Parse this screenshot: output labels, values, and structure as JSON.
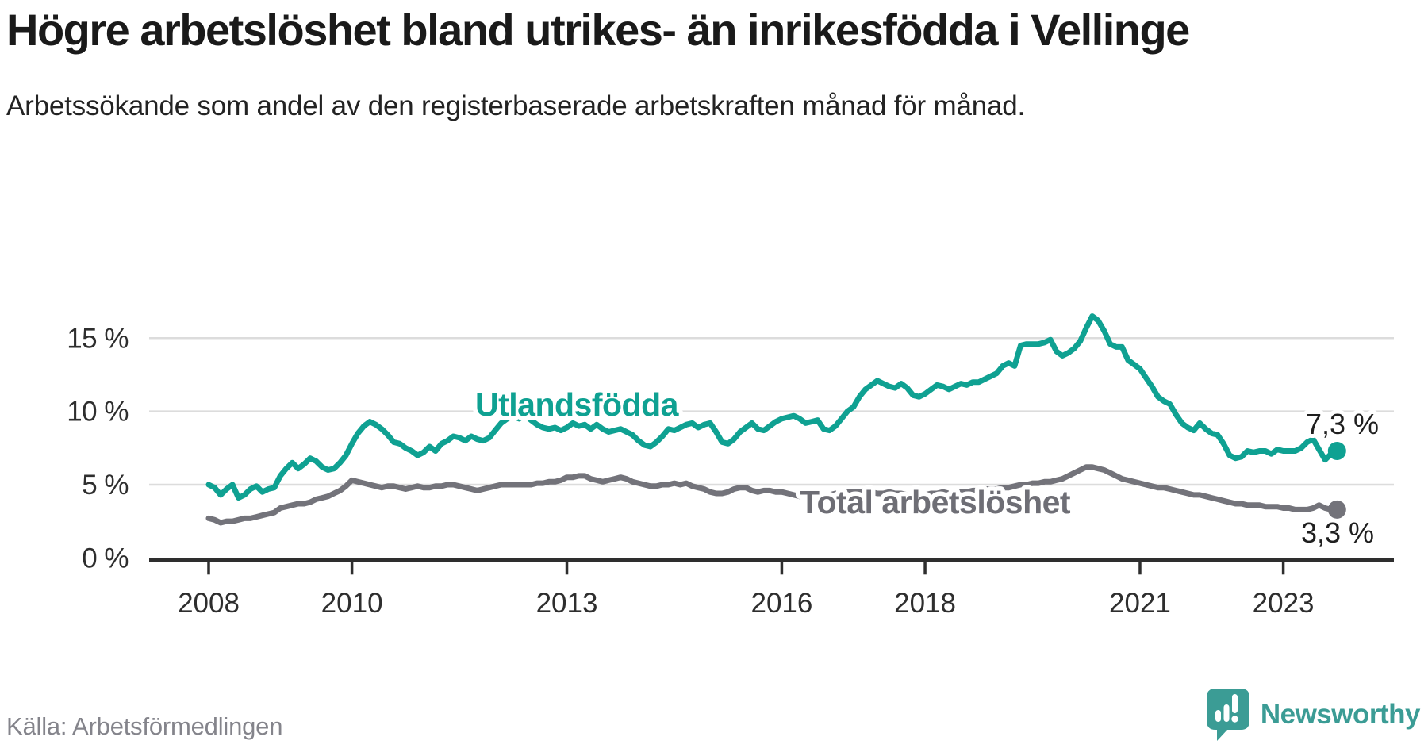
{
  "header": {
    "title": "Högre arbetslöshet bland utrikes- än inrikesfödda i Vellinge",
    "subtitle": "Arbetssökande som andel av den registerbaserade arbetskraften månad för månad."
  },
  "footer": {
    "source": "Källa: Arbetsförmedlingen",
    "brand": "Newsworthy"
  },
  "colors": {
    "teal_line": "#0fa192",
    "gray_line": "#73737a",
    "gray_label": "#6e6e75",
    "end_label_ink": "#1f1f1f",
    "title_ink": "#1a1a1a",
    "axis_ink": "#2e2e2e",
    "grid": "#dcdcdc",
    "source_gray": "#84848b",
    "brand_teal": "#3b9c95"
  },
  "chart_data": {
    "type": "line",
    "title": "Högre arbetslöshet bland utrikes- än inrikesfödda i Vellinge",
    "ylabel": "",
    "xlabel": "",
    "frequency": "monthly",
    "x_start": "2008-01",
    "x_end": "2023-10",
    "grid": "horizontal-only",
    "legend_position": "inline-labels",
    "y_axis": {
      "range": [
        0,
        17
      ],
      "ticks": [
        {
          "value": 0,
          "label": "0 %"
        },
        {
          "value": 5,
          "label": "5 %"
        },
        {
          "value": 10,
          "label": "10 %"
        },
        {
          "value": 15,
          "label": "15 %"
        }
      ]
    },
    "x_axis": {
      "ticks": [
        {
          "year": 2008,
          "label": "2008"
        },
        {
          "year": 2010,
          "label": "2010"
        },
        {
          "year": 2013,
          "label": "2013"
        },
        {
          "year": 2016,
          "label": "2016"
        },
        {
          "year": 2018,
          "label": "2018"
        },
        {
          "year": 2021,
          "label": "2021"
        },
        {
          "year": 2023,
          "label": "2023"
        }
      ]
    },
    "series": [
      {
        "id": "total",
        "name": "Total arbetslöshet",
        "color": "#73737a",
        "label_color": "#6e6e75",
        "end_label": "3,3 %",
        "last_value": 3.3,
        "values": [
          2.7,
          2.6,
          2.4,
          2.5,
          2.5,
          2.6,
          2.7,
          2.7,
          2.8,
          2.9,
          3.0,
          3.1,
          3.4,
          3.5,
          3.6,
          3.7,
          3.7,
          3.8,
          4.0,
          4.1,
          4.2,
          4.4,
          4.6,
          4.9,
          5.3,
          5.2,
          5.1,
          5.0,
          4.9,
          4.8,
          4.9,
          4.9,
          4.8,
          4.7,
          4.8,
          4.9,
          4.8,
          4.8,
          4.9,
          4.9,
          5.0,
          5.0,
          4.9,
          4.8,
          4.7,
          4.6,
          4.7,
          4.8,
          4.9,
          5.0,
          5.0,
          5.0,
          5.0,
          5.0,
          5.0,
          5.1,
          5.1,
          5.2,
          5.2,
          5.3,
          5.5,
          5.5,
          5.6,
          5.6,
          5.4,
          5.3,
          5.2,
          5.3,
          5.4,
          5.5,
          5.4,
          5.2,
          5.1,
          5.0,
          4.9,
          4.9,
          5.0,
          5.0,
          5.1,
          5.0,
          5.1,
          4.9,
          4.8,
          4.7,
          4.5,
          4.4,
          4.4,
          4.5,
          4.7,
          4.8,
          4.8,
          4.6,
          4.5,
          4.6,
          4.6,
          4.5,
          4.5,
          4.4,
          4.3,
          4.2,
          4.3,
          4.4,
          4.4,
          4.3,
          4.3,
          4.4,
          4.4,
          4.5,
          4.5,
          4.5,
          4.6,
          4.5,
          4.4,
          4.4,
          4.5,
          4.4,
          4.4,
          4.3,
          4.3,
          4.3,
          4.3,
          4.4,
          4.4,
          4.5,
          4.4,
          4.4,
          4.5,
          4.5,
          4.6,
          4.6,
          4.7,
          4.7,
          4.7,
          4.8,
          4.8,
          4.9,
          5.0,
          5.0,
          5.1,
          5.1,
          5.2,
          5.2,
          5.3,
          5.4,
          5.6,
          5.8,
          6.0,
          6.2,
          6.2,
          6.1,
          6.0,
          5.8,
          5.6,
          5.4,
          5.3,
          5.2,
          5.1,
          5.0,
          4.9,
          4.8,
          4.8,
          4.7,
          4.6,
          4.5,
          4.4,
          4.3,
          4.3,
          4.2,
          4.1,
          4.0,
          3.9,
          3.8,
          3.7,
          3.7,
          3.6,
          3.6,
          3.6,
          3.5,
          3.5,
          3.5,
          3.4,
          3.4,
          3.3,
          3.3,
          3.3,
          3.4,
          3.6,
          3.4,
          3.3,
          3.3
        ]
      },
      {
        "id": "utlandsfodda",
        "name": "Utlandsfödda",
        "color": "#0fa192",
        "label_color": "#0fa192",
        "end_label": "7,3 %",
        "last_value": 7.3,
        "values": [
          5.0,
          4.8,
          4.3,
          4.7,
          5.0,
          4.1,
          4.3,
          4.7,
          4.9,
          4.5,
          4.7,
          4.8,
          5.6,
          6.1,
          6.5,
          6.1,
          6.4,
          6.8,
          6.6,
          6.2,
          6.0,
          6.1,
          6.5,
          7.0,
          7.8,
          8.5,
          9.0,
          9.3,
          9.1,
          8.8,
          8.4,
          7.9,
          7.8,
          7.5,
          7.3,
          7.0,
          7.2,
          7.6,
          7.3,
          7.8,
          8.0,
          8.3,
          8.2,
          8.0,
          8.3,
          8.1,
          8.0,
          8.2,
          8.7,
          9.2,
          9.5,
          9.7,
          9.5,
          9.8,
          9.4,
          9.1,
          8.9,
          8.8,
          8.9,
          8.7,
          8.9,
          9.2,
          9.0,
          9.1,
          8.8,
          9.1,
          8.8,
          8.6,
          8.7,
          8.8,
          8.6,
          8.4,
          8.0,
          7.7,
          7.6,
          7.9,
          8.3,
          8.8,
          8.7,
          8.9,
          9.1,
          9.2,
          8.9,
          9.1,
          9.2,
          8.6,
          7.9,
          7.8,
          8.1,
          8.6,
          8.9,
          9.2,
          8.8,
          8.7,
          9.0,
          9.3,
          9.5,
          9.6,
          9.7,
          9.5,
          9.2,
          9.3,
          9.4,
          8.8,
          8.7,
          9.0,
          9.5,
          10.0,
          10.3,
          11.0,
          11.5,
          11.8,
          12.1,
          11.9,
          11.7,
          11.6,
          11.9,
          11.6,
          11.1,
          11.0,
          11.2,
          11.5,
          11.8,
          11.7,
          11.5,
          11.7,
          11.9,
          11.8,
          12.0,
          12.0,
          12.2,
          12.4,
          12.6,
          13.1,
          13.3,
          13.1,
          14.5,
          14.6,
          14.6,
          14.6,
          14.7,
          14.9,
          14.1,
          13.8,
          14.0,
          14.3,
          14.8,
          15.7,
          16.5,
          16.2,
          15.5,
          14.6,
          14.4,
          14.4,
          13.5,
          13.2,
          12.9,
          12.3,
          11.7,
          11.0,
          10.7,
          10.5,
          9.8,
          9.2,
          8.9,
          8.7,
          9.2,
          8.8,
          8.5,
          8.4,
          7.8,
          7.0,
          6.8,
          6.9,
          7.3,
          7.2,
          7.3,
          7.3,
          7.1,
          7.4,
          7.3,
          7.3,
          7.3,
          7.5,
          7.9,
          8.1,
          7.4,
          6.7,
          7.1,
          7.3
        ]
      }
    ]
  }
}
